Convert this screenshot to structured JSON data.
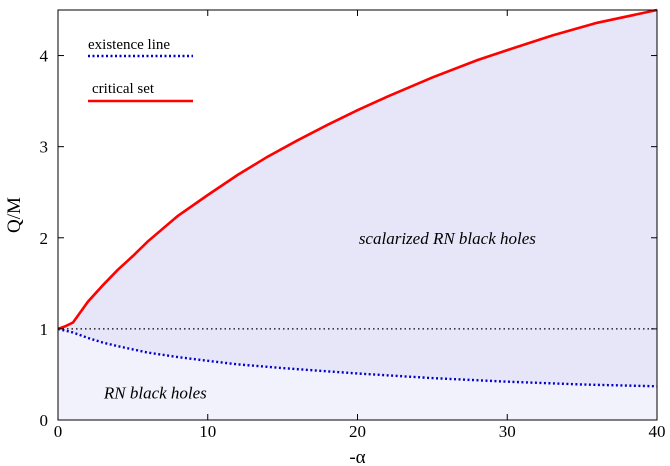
{
  "chart_data": {
    "type": "line",
    "title": "",
    "xlabel": "-α",
    "ylabel": "Q/M",
    "xlim": [
      0,
      40
    ],
    "ylim": [
      0,
      4.5
    ],
    "x_ticks": [
      0,
      10,
      20,
      30,
      40
    ],
    "y_ticks": [
      0,
      1,
      2,
      3,
      4
    ],
    "grid": false,
    "legend_position": "top-left",
    "colors": {
      "critical": "#ff0000",
      "existence": "#0000cc",
      "extremal": "#000000",
      "scalarized_fill": "#e6e6f8",
      "rn_fill": "#f2f2fc"
    },
    "series": [
      {
        "name": "existence line",
        "style": "dotted",
        "color": "#0000cc",
        "x": [
          0,
          1,
          2,
          3,
          4,
          6,
          8,
          10,
          12,
          15,
          20,
          25,
          30,
          35,
          40
        ],
        "y": [
          1.0,
          0.96,
          0.9,
          0.85,
          0.81,
          0.74,
          0.69,
          0.65,
          0.61,
          0.57,
          0.51,
          0.46,
          0.42,
          0.39,
          0.37
        ]
      },
      {
        "name": "critical set",
        "style": "solid",
        "color": "#ff0000",
        "x": [
          0,
          0.5,
          1,
          2,
          3,
          4,
          5,
          6,
          8,
          10,
          12,
          14,
          16,
          18,
          20,
          22,
          25,
          28,
          30,
          33,
          36,
          40
        ],
        "y": [
          1.0,
          1.03,
          1.07,
          1.3,
          1.48,
          1.65,
          1.8,
          1.96,
          2.24,
          2.47,
          2.69,
          2.89,
          3.07,
          3.24,
          3.4,
          3.55,
          3.76,
          3.95,
          4.06,
          4.22,
          4.36,
          4.5
        ]
      },
      {
        "role": "extremal reference",
        "style": "dotted",
        "color": "#000000",
        "x": [
          0,
          40
        ],
        "y": [
          1,
          1
        ]
      }
    ],
    "annotations": [
      {
        "text": "scalarized RN black holes",
        "x": 26,
        "y": 2.0
      },
      {
        "text": "RN black holes",
        "x": 6.5,
        "y": 0.3
      }
    ]
  }
}
